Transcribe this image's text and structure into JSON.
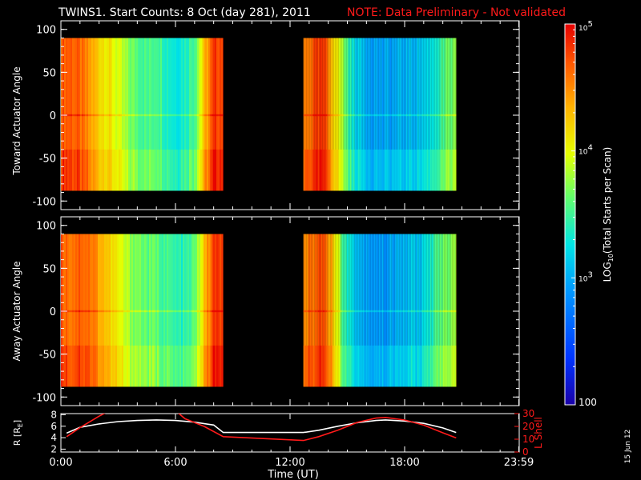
{
  "title": "TWINS1. Start Counts:  8 Oct (day 281), 2011",
  "note": "NOTE: Data Preliminary - Not validated",
  "stamp": "15 Jun 12",
  "colorbar": {
    "label": "LOG10(Total Starts per Scan)",
    "label_main": "LOG",
    "label_sub": "10",
    "label_rest": "(Total Starts per Scan)",
    "scale": "log",
    "range": [
      100,
      100000
    ],
    "ticks": [
      {
        "value": 100,
        "label": "100"
      },
      {
        "value": 1000,
        "label": "10",
        "exp": "3"
      },
      {
        "value": 10000,
        "label": "10",
        "exp": "4"
      },
      {
        "value": 100000,
        "label": "10",
        "exp": "5"
      }
    ]
  },
  "chart_data": [
    {
      "type": "heatmap",
      "ylabel": "Toward Actuator Angle",
      "ylim": [
        -110,
        110
      ],
      "yticks": [
        "100",
        "50",
        "0",
        "-50",
        "-100"
      ],
      "ytick_values": [
        100,
        50,
        0,
        -50,
        -100
      ],
      "y_extent": [
        -88,
        90
      ],
      "x_unit": "hours UT",
      "segments": [
        {
          "x_start": 0.0,
          "x_end": 8.5
        },
        {
          "x_start": 12.7,
          "x_end": 20.7
        }
      ],
      "profile_hours": [
        0.0,
        0.5,
        1.0,
        1.5,
        2.0,
        2.5,
        3.0,
        3.5,
        4.0,
        4.5,
        5.0,
        5.5,
        6.0,
        6.5,
        7.0,
        7.5,
        8.0,
        8.5,
        12.7,
        13.2,
        13.7,
        14.2,
        14.7,
        15.2,
        15.7,
        16.2,
        16.7,
        17.2,
        17.7,
        18.2,
        18.7,
        19.2,
        19.7,
        20.2,
        20.7
      ],
      "profile_log_counts": [
        4.7,
        4.7,
        4.6,
        4.4,
        4.2,
        4.1,
        3.9,
        3.7,
        3.6,
        3.5,
        3.6,
        3.4,
        3.3,
        3.4,
        3.6,
        4.3,
        4.8,
        4.8,
        4.5,
        4.7,
        4.8,
        4.3,
        3.8,
        3.3,
        3.1,
        3.0,
        2.95,
        2.95,
        3.0,
        3.05,
        3.1,
        3.2,
        3.4,
        3.6,
        3.7
      ]
    },
    {
      "type": "heatmap",
      "ylabel": "Away Actuator Angle",
      "ylim": [
        -110,
        110
      ],
      "yticks": [
        "100",
        "50",
        "0",
        "-50",
        "-100"
      ],
      "ytick_values": [
        100,
        50,
        0,
        -50,
        -100
      ],
      "y_extent": [
        -88,
        90
      ],
      "x_unit": "hours UT",
      "segments": [
        {
          "x_start": 0.0,
          "x_end": 8.5
        },
        {
          "x_start": 12.7,
          "x_end": 20.7
        }
      ],
      "profile_hours": [
        0.0,
        0.5,
        1.0,
        1.5,
        2.0,
        2.5,
        3.0,
        3.5,
        4.0,
        4.5,
        5.0,
        5.5,
        6.0,
        6.5,
        7.0,
        7.5,
        8.0,
        8.5,
        12.7,
        13.2,
        13.7,
        14.2,
        14.7,
        15.2,
        15.7,
        16.2,
        16.7,
        17.2,
        17.7,
        18.2,
        18.7,
        19.2,
        19.7,
        20.2,
        20.7
      ],
      "profile_log_counts": [
        4.7,
        4.6,
        4.7,
        4.6,
        4.4,
        4.2,
        4.0,
        3.8,
        3.7,
        3.6,
        3.6,
        3.5,
        3.4,
        3.4,
        3.6,
        4.3,
        4.8,
        4.8,
        4.5,
        4.6,
        4.8,
        4.3,
        3.6,
        3.2,
        3.0,
        2.95,
        2.9,
        2.95,
        3.0,
        3.1,
        3.1,
        3.3,
        3.5,
        3.7,
        3.8
      ]
    },
    {
      "type": "line",
      "xlabel": "Time (UT)",
      "xlim": [
        0,
        24
      ],
      "xticks": [
        "0:00",
        "6:00",
        "12:00",
        "18:00",
        "23:59"
      ],
      "xtick_values": [
        0,
        6,
        12,
        18,
        23.98
      ],
      "ylabel_left": "R [RE]",
      "ylabel_left_main": "R [R",
      "ylabel_left_sub": "E",
      "ylabel_left_end": "]",
      "ylim_left": [
        1.5,
        8.2
      ],
      "yticks_left": [
        "2",
        "4",
        "6",
        "8"
      ],
      "ytick_values_left": [
        2,
        4,
        6,
        8
      ],
      "ylabel_right": "L Shell",
      "ylim_right": [
        0,
        30
      ],
      "yticks_right": [
        "0",
        "10",
        "20",
        "30"
      ],
      "ytick_values_right": [
        0,
        10,
        20,
        30
      ],
      "series": [
        {
          "axis": "left",
          "color": "#ffffff",
          "x": [
            0.3,
            1.0,
            2.0,
            3.0,
            4.0,
            5.0,
            6.0,
            7.0,
            8.0,
            8.5,
            12.7,
            13.5,
            14.5,
            15.5,
            16.5,
            17.0,
            18.0,
            19.0,
            20.0,
            20.7
          ],
          "y": [
            4.8,
            5.8,
            6.4,
            6.8,
            7.0,
            7.1,
            7.0,
            6.7,
            6.2,
            4.9,
            4.9,
            5.3,
            6.0,
            6.6,
            7.0,
            7.1,
            6.9,
            6.5,
            5.7,
            4.9
          ]
        },
        {
          "axis": "right",
          "color": "#ff1a1a",
          "x": [
            0.3,
            1.0,
            2.0,
            2.4,
            6.1,
            6.5,
            7.5,
            8.5,
            12.7,
            13.5,
            14.5,
            15.5,
            16.5,
            17.0,
            18.0,
            19.0,
            20.0,
            20.7
          ],
          "y": [
            12,
            19,
            28,
            31,
            31,
            26,
            20,
            12,
            9,
            12,
            17,
            23,
            26.5,
            27,
            25,
            21,
            15,
            11
          ]
        }
      ]
    }
  ]
}
